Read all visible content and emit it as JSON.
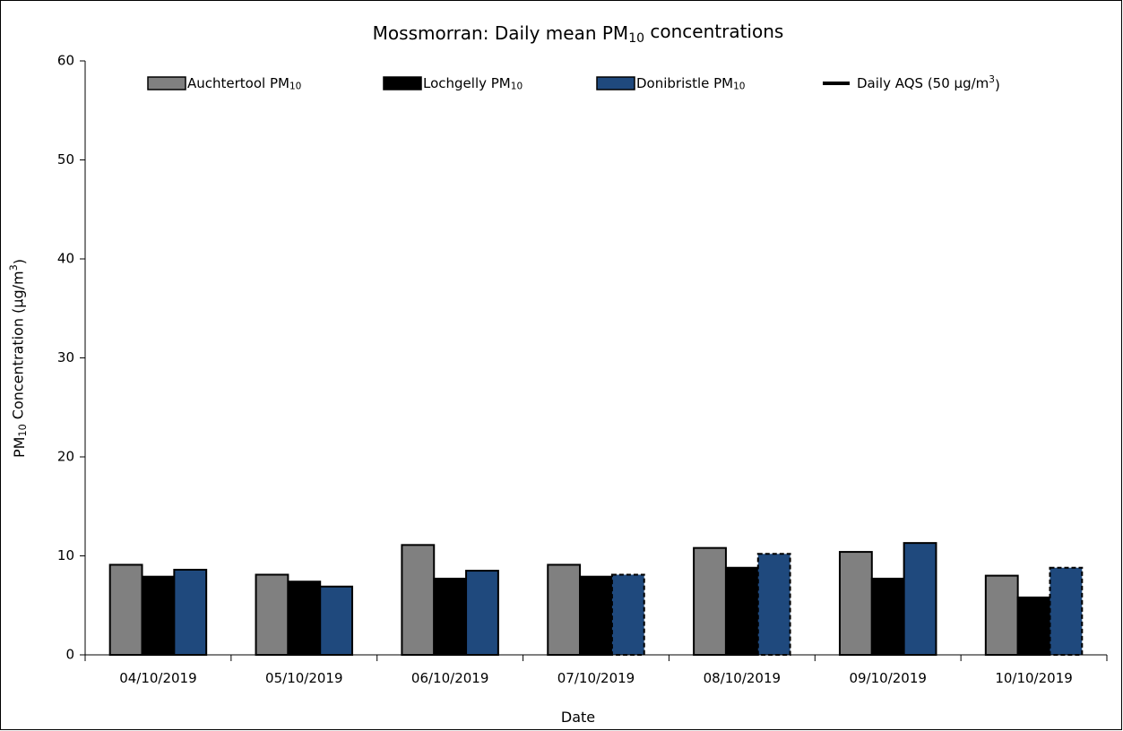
{
  "chart_data": {
    "type": "bar",
    "title": "Mossmorran: Daily mean PM10 concentrations",
    "x_label": "Date",
    "y_label": "PM10 Concentration (µg/m3)",
    "categories": [
      "04/10/2019",
      "05/10/2019",
      "06/10/2019",
      "07/10/2019",
      "08/10/2019",
      "09/10/2019",
      "10/10/2019"
    ],
    "series": [
      {
        "name": "Auchtertool PM10",
        "color": "#808080",
        "values": [
          9.1,
          8.1,
          11.1,
          9.1,
          10.8,
          10.4,
          8.0
        ]
      },
      {
        "name": "Lochgelly PM10",
        "color": "#000000",
        "values": [
          7.9,
          7.4,
          7.7,
          7.9,
          8.8,
          7.7,
          5.8
        ]
      },
      {
        "name": "Donibristle PM10",
        "color": "#1f497d",
        "values": [
          8.6,
          6.9,
          8.5,
          8.1,
          10.2,
          11.3,
          8.8
        ],
        "dashed": [
          false,
          false,
          false,
          true,
          true,
          false,
          true
        ]
      },
      {
        "name": "Daily AQS (50 µg/m3)",
        "color": "#000000",
        "style": "line"
      }
    ],
    "ylim": [
      0,
      60
    ],
    "yticks": [
      0,
      10,
      20,
      30,
      40,
      50,
      60
    ]
  }
}
